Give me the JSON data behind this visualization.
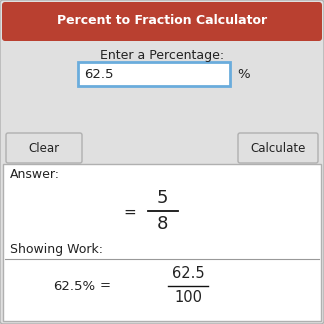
{
  "title": "Percent to Fraction Calculator",
  "title_bg": "#b94030",
  "title_color": "#ffffff",
  "bg_color": "#e0e0e0",
  "white_color": "#ffffff",
  "border_color": "#b0b0b0",
  "input_border_color": "#6aacdc",
  "label_percentage": "Enter a Percentage:",
  "input_value": "62.5",
  "percent_sign": "%",
  "btn_clear": "Clear",
  "btn_calculate": "Calculate",
  "answer_label": "Answer:",
  "answer_numerator": "5",
  "answer_denominator": "8",
  "equals_sign": "=",
  "showing_work_label": "Showing Work:",
  "work_lhs": "62.5%",
  "work_eq": "=",
  "work_num": "62.5",
  "work_den": "100"
}
